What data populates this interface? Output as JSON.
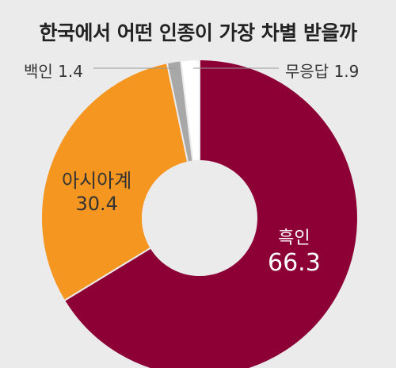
{
  "chart_data": {
    "type": "pie",
    "title": "한국에서 어떤 인종이 가장 차별 받을까",
    "categories": [
      "흑인",
      "아시아계",
      "백인",
      "무응답"
    ],
    "values": [
      66.3,
      30.4,
      1.4,
      1.9
    ],
    "colors": [
      "#8c0035",
      "#f4961f",
      "#a8a8a8",
      "#ffffff"
    ],
    "donut": true
  }
}
